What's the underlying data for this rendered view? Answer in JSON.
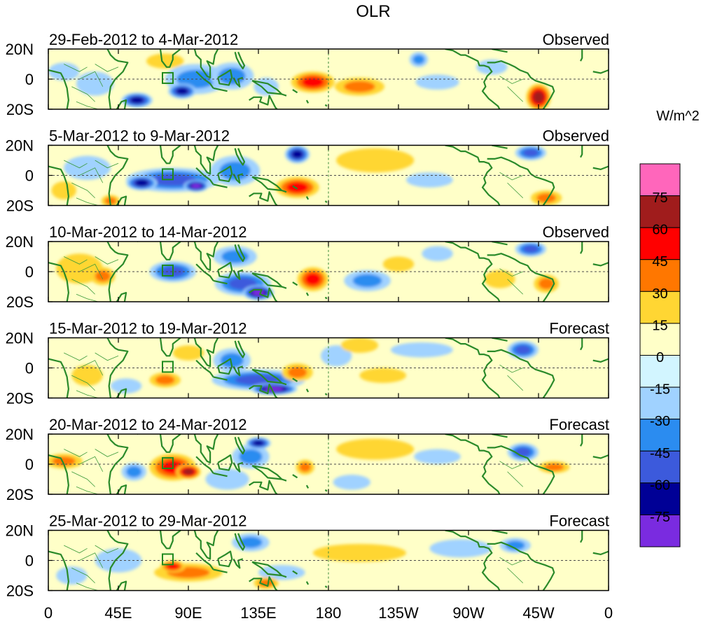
{
  "chart_data": {
    "type": "heatmap",
    "title": "OLR",
    "units": "W/m^2",
    "xlabel": "",
    "ylabel": "",
    "x_ticks": [
      "0",
      "45E",
      "90E",
      "135E",
      "180",
      "135W",
      "90W",
      "45W",
      "0"
    ],
    "y_ticks": [
      "20N",
      "0",
      "20S"
    ],
    "xlim": [
      0,
      360
    ],
    "ylim": [
      -20,
      20
    ],
    "colorbar": {
      "labels": [
        "75",
        "60",
        "45",
        "30",
        "15",
        "0",
        "-15",
        "-30",
        "-45",
        "-60",
        "-75"
      ],
      "colors": [
        "#ff66bb",
        "#a01c1c",
        "#ff0000",
        "#ff7700",
        "#ffd633",
        "#ffffc8",
        "#d2f5ff",
        "#a0d2ff",
        "#2b8cf0",
        "#3c5adc",
        "#000096",
        "#7a2be0"
      ]
    },
    "panels": [
      {
        "period": "29-Feb-2012 to 4-Mar-2012",
        "kind": "Observed",
        "anomalies": [
          {
            "lon": 95,
            "lat": 0,
            "rlon": 20,
            "rlat": 10,
            "value": -40
          },
          {
            "lon": 86,
            "lat": -8,
            "rlon": 9,
            "rlat": 5,
            "value": -65
          },
          {
            "lon": 118,
            "lat": 2,
            "rlon": 14,
            "rlat": 9,
            "value": -35
          },
          {
            "lon": 57,
            "lat": -14,
            "rlon": 10,
            "rlat": 5,
            "value": -70
          },
          {
            "lon": 140,
            "lat": -5,
            "rlon": 8,
            "rlat": 6,
            "value": -20
          },
          {
            "lon": 170,
            "lat": -2,
            "rlon": 14,
            "rlat": 7,
            "value": 45
          },
          {
            "lon": 200,
            "lat": -5,
            "rlon": 16,
            "rlat": 6,
            "value": 30
          },
          {
            "lon": 238,
            "lat": 13,
            "rlon": 6,
            "rlat": 5,
            "value": -40
          },
          {
            "lon": 250,
            "lat": -2,
            "rlon": 14,
            "rlat": 5,
            "value": -20
          },
          {
            "lon": 315,
            "lat": -12,
            "rlon": 8,
            "rlat": 9,
            "value": 65
          },
          {
            "lon": 30,
            "lat": -3,
            "rlon": 12,
            "rlat": 8,
            "value": -25
          },
          {
            "lon": 10,
            "lat": 5,
            "rlon": 10,
            "rlat": 6,
            "value": -15
          },
          {
            "lon": 75,
            "lat": 12,
            "rlon": 12,
            "rlat": 5,
            "value": 15
          },
          {
            "lon": 285,
            "lat": 8,
            "rlon": 10,
            "rlat": 5,
            "value": -20
          }
        ]
      },
      {
        "period": "5-Mar-2012 to 9-Mar-2012",
        "kind": "Observed",
        "anomalies": [
          {
            "lon": 80,
            "lat": -3,
            "rlon": 30,
            "rlat": 8,
            "value": -45
          },
          {
            "lon": 95,
            "lat": -7,
            "rlon": 8,
            "rlat": 4,
            "value": -75
          },
          {
            "lon": 60,
            "lat": -5,
            "rlon": 10,
            "rlat": 5,
            "value": -60
          },
          {
            "lon": 120,
            "lat": 3,
            "rlon": 16,
            "rlat": 10,
            "value": -35
          },
          {
            "lon": 160,
            "lat": 14,
            "rlon": 8,
            "rlat": 6,
            "value": -60
          },
          {
            "lon": 160,
            "lat": -8,
            "rlon": 14,
            "rlat": 7,
            "value": 50
          },
          {
            "lon": 210,
            "lat": 10,
            "rlon": 25,
            "rlat": 8,
            "value": 20
          },
          {
            "lon": 245,
            "lat": -3,
            "rlon": 15,
            "rlat": 5,
            "value": -25
          },
          {
            "lon": 310,
            "lat": 15,
            "rlon": 10,
            "rlat": 5,
            "value": -55
          },
          {
            "lon": 320,
            "lat": -15,
            "rlon": 10,
            "rlat": 5,
            "value": 35
          },
          {
            "lon": 25,
            "lat": 5,
            "rlon": 15,
            "rlat": 8,
            "value": -15
          },
          {
            "lon": 40,
            "lat": -17,
            "rlon": 6,
            "rlat": 4,
            "value": 35
          },
          {
            "lon": 10,
            "lat": -10,
            "rlon": 8,
            "rlat": 6,
            "value": 15
          }
        ]
      },
      {
        "period": "10-Mar-2012 to 14-Mar-2012",
        "kind": "Observed",
        "anomalies": [
          {
            "lon": 80,
            "lat": 0,
            "rlon": 15,
            "rlat": 7,
            "value": -45
          },
          {
            "lon": 125,
            "lat": -8,
            "rlon": 18,
            "rlat": 8,
            "value": -55
          },
          {
            "lon": 135,
            "lat": -14,
            "rlon": 10,
            "rlat": 5,
            "value": -80
          },
          {
            "lon": 120,
            "lat": 10,
            "rlon": 14,
            "rlat": 7,
            "value": -35
          },
          {
            "lon": 170,
            "lat": -5,
            "rlon": 10,
            "rlat": 8,
            "value": 50
          },
          {
            "lon": 205,
            "lat": -6,
            "rlon": 15,
            "rlat": 7,
            "value": -40
          },
          {
            "lon": 225,
            "lat": 5,
            "rlon": 10,
            "rlat": 5,
            "value": 15
          },
          {
            "lon": 250,
            "lat": 12,
            "rlon": 10,
            "rlat": 5,
            "value": -25
          },
          {
            "lon": 310,
            "lat": 15,
            "rlon": 10,
            "rlat": 5,
            "value": -45
          },
          {
            "lon": 290,
            "lat": -5,
            "rlon": 10,
            "rlat": 6,
            "value": 15
          },
          {
            "lon": 20,
            "lat": 2,
            "rlon": 15,
            "rlat": 10,
            "value": 20
          },
          {
            "lon": 35,
            "lat": -3,
            "rlon": 8,
            "rlat": 6,
            "value": 35
          },
          {
            "lon": 320,
            "lat": -8,
            "rlon": 8,
            "rlat": 6,
            "value": 30
          }
        ]
      },
      {
        "period": "15-Mar-2012 to 19-Mar-2012",
        "kind": "Forecast",
        "anomalies": [
          {
            "lon": 135,
            "lat": -8,
            "rlon": 30,
            "rlat": 7,
            "value": -45
          },
          {
            "lon": 145,
            "lat": -14,
            "rlon": 15,
            "rlat": 4,
            "value": -75
          },
          {
            "lon": 118,
            "lat": 5,
            "rlon": 12,
            "rlat": 8,
            "value": -30
          },
          {
            "lon": 160,
            "lat": -3,
            "rlon": 10,
            "rlat": 6,
            "value": 35
          },
          {
            "lon": 215,
            "lat": -5,
            "rlon": 15,
            "rlat": 5,
            "value": 25
          },
          {
            "lon": 185,
            "lat": 8,
            "rlon": 10,
            "rlat": 7,
            "value": -25
          },
          {
            "lon": 200,
            "lat": 15,
            "rlon": 12,
            "rlat": 5,
            "value": 25
          },
          {
            "lon": 240,
            "lat": 12,
            "rlon": 20,
            "rlat": 5,
            "value": -25
          },
          {
            "lon": 305,
            "lat": 12,
            "rlon": 10,
            "rlat": 6,
            "value": -45
          },
          {
            "lon": 75,
            "lat": -8,
            "rlon": 10,
            "rlat": 5,
            "value": 30
          },
          {
            "lon": 90,
            "lat": 10,
            "rlon": 10,
            "rlat": 5,
            "value": 20
          },
          {
            "lon": 25,
            "lat": -5,
            "rlon": 10,
            "rlat": 7,
            "value": 15
          },
          {
            "lon": 50,
            "lat": -12,
            "rlon": 10,
            "rlat": 5,
            "value": -25
          }
        ]
      },
      {
        "period": "20-Mar-2012 to 24-Mar-2012",
        "kind": "Forecast",
        "anomalies": [
          {
            "lon": 80,
            "lat": -2,
            "rlon": 15,
            "rlat": 9,
            "value": 45
          },
          {
            "lon": 90,
            "lat": -5,
            "rlon": 8,
            "rlat": 5,
            "value": 60
          },
          {
            "lon": 130,
            "lat": 5,
            "rlon": 12,
            "rlat": 8,
            "value": -30
          },
          {
            "lon": 135,
            "lat": 14,
            "rlon": 8,
            "rlat": 4,
            "value": -60
          },
          {
            "lon": 115,
            "lat": -10,
            "rlon": 14,
            "rlat": 7,
            "value": -25
          },
          {
            "lon": 165,
            "lat": -2,
            "rlon": 6,
            "rlat": 5,
            "value": 40
          },
          {
            "lon": 210,
            "lat": 10,
            "rlon": 25,
            "rlat": 7,
            "value": 20
          },
          {
            "lon": 250,
            "lat": 5,
            "rlon": 15,
            "rlat": 5,
            "value": -15
          },
          {
            "lon": 305,
            "lat": 8,
            "rlon": 10,
            "rlat": 6,
            "value": -45
          },
          {
            "lon": 325,
            "lat": -2,
            "rlon": 10,
            "rlat": 4,
            "value": 35
          },
          {
            "lon": 10,
            "lat": 2,
            "rlon": 12,
            "rlat": 5,
            "value": 35
          },
          {
            "lon": 55,
            "lat": -5,
            "rlon": 8,
            "rlat": 6,
            "value": -30
          },
          {
            "lon": 195,
            "lat": -12,
            "rlon": 12,
            "rlat": 5,
            "value": -20
          }
        ]
      },
      {
        "period": "25-Mar-2012 to 29-Mar-2012",
        "kind": "Forecast",
        "anomalies": [
          {
            "lon": 90,
            "lat": -8,
            "rlon": 22,
            "rlat": 6,
            "value": 40
          },
          {
            "lon": 80,
            "lat": -4,
            "rlon": 8,
            "rlat": 4,
            "value": 45
          },
          {
            "lon": 130,
            "lat": 12,
            "rlon": 12,
            "rlat": 6,
            "value": -35
          },
          {
            "lon": 150,
            "lat": -8,
            "rlon": 15,
            "rlat": 5,
            "value": -25
          },
          {
            "lon": 140,
            "lat": -15,
            "rlon": 8,
            "rlat": 4,
            "value": 35
          },
          {
            "lon": 200,
            "lat": 5,
            "rlon": 30,
            "rlat": 6,
            "value": 15
          },
          {
            "lon": 265,
            "lat": 8,
            "rlon": 20,
            "rlat": 6,
            "value": -15
          },
          {
            "lon": 300,
            "lat": 10,
            "rlon": 10,
            "rlat": 5,
            "value": -30
          },
          {
            "lon": 45,
            "lat": 0,
            "rlon": 15,
            "rlat": 8,
            "value": -15
          },
          {
            "lon": 15,
            "lat": -10,
            "rlon": 10,
            "rlat": 6,
            "value": -15
          }
        ]
      }
    ]
  }
}
